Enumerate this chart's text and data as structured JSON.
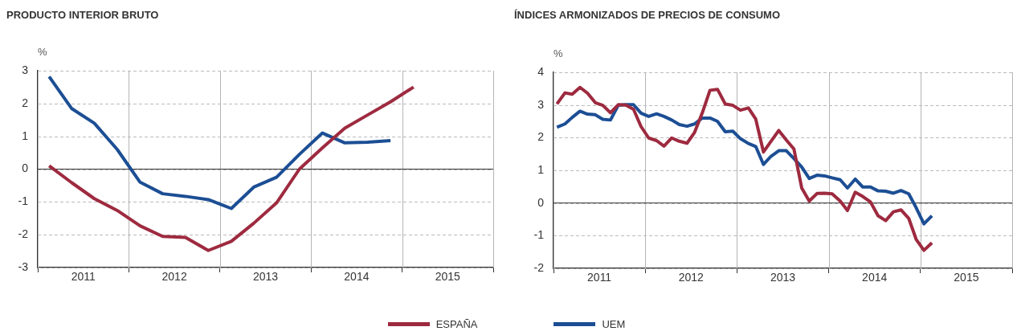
{
  "chart_data": [
    {
      "type": "line",
      "title": "PRODUCTO INTERIOR BRUTO",
      "ylabel": "%",
      "x": [
        "2011-02-15",
        "2011-05-15",
        "2011-08-15",
        "2011-11-15",
        "2012-02-15",
        "2012-05-15",
        "2012-08-15",
        "2012-11-15",
        "2013-02-15",
        "2013-05-15",
        "2013-08-15",
        "2013-11-15",
        "2014-02-15",
        "2014-05-15",
        "2014-08-15",
        "2014-11-15",
        "2015-02-15"
      ],
      "xlim": [
        "2011-01-01",
        "2016-01-01"
      ],
      "xticks": [
        {
          "value": "2011-01-01",
          "label": null
        },
        {
          "value": "2011-07-01",
          "label": "2011"
        },
        {
          "value": "2012-01-01",
          "label": null
        },
        {
          "value": "2012-07-01",
          "label": "2012"
        },
        {
          "value": "2013-01-01",
          "label": null
        },
        {
          "value": "2013-07-01",
          "label": "2013"
        },
        {
          "value": "2014-01-01",
          "label": null
        },
        {
          "value": "2014-07-01",
          "label": "2014"
        },
        {
          "value": "2015-01-01",
          "label": null
        },
        {
          "value": "2015-07-01",
          "label": "2015"
        },
        {
          "value": "2016-01-01",
          "label": null
        }
      ],
      "ylim": [
        -3,
        3
      ],
      "yticks": [
        -3,
        -2,
        -1,
        0,
        1,
        2,
        3
      ],
      "grid": true,
      "legend": "bottom",
      "ref_lines": [
        {
          "axis": "y",
          "value": 0,
          "color": "#333333"
        }
      ],
      "series": [
        {
          "name": "ESPAÑA",
          "color": "#9e2a3f",
          "values": [
            0.1,
            -0.41,
            -0.9,
            -1.26,
            -1.73,
            -2.05,
            -2.08,
            -2.48,
            -2.2,
            -1.65,
            -1.03,
            0.0,
            0.65,
            1.25,
            1.65,
            2.05,
            2.5
          ]
        },
        {
          "name": "UEM",
          "color": "#1c4e94",
          "values": [
            2.82,
            1.85,
            1.4,
            0.6,
            -0.4,
            -0.75,
            -0.83,
            -0.93,
            -1.2,
            -0.55,
            -0.25,
            0.45,
            1.1,
            0.8,
            0.82,
            0.87,
            null
          ]
        }
      ]
    },
    {
      "type": "line",
      "title": "ÍNDICES ARMONIZADOS DE PRECIOS DE CONSUMO",
      "ylabel": "%",
      "x": [
        "2011-01-15",
        "2011-02-15",
        "2011-03-15",
        "2011-04-15",
        "2011-05-15",
        "2011-06-15",
        "2011-07-15",
        "2011-08-15",
        "2011-09-15",
        "2011-10-15",
        "2011-11-15",
        "2011-12-15",
        "2012-01-15",
        "2012-02-15",
        "2012-03-15",
        "2012-04-15",
        "2012-05-15",
        "2012-06-15",
        "2012-07-15",
        "2012-08-15",
        "2012-09-15",
        "2012-10-15",
        "2012-11-15",
        "2012-12-15",
        "2013-01-15",
        "2013-02-15",
        "2013-03-15",
        "2013-04-15",
        "2013-05-15",
        "2013-06-15",
        "2013-07-15",
        "2013-08-15",
        "2013-09-15",
        "2013-10-15",
        "2013-11-15",
        "2013-12-15",
        "2014-01-15",
        "2014-02-15",
        "2014-03-15",
        "2014-04-15",
        "2014-05-15",
        "2014-06-15",
        "2014-07-15",
        "2014-08-15",
        "2014-09-15",
        "2014-10-15",
        "2014-11-15",
        "2014-12-15",
        "2015-01-15",
        "2015-02-15"
      ],
      "xlim": [
        "2011-01-01",
        "2016-01-01"
      ],
      "xticks": [
        {
          "value": "2011-01-01",
          "label": null
        },
        {
          "value": "2011-07-01",
          "label": "2011"
        },
        {
          "value": "2012-01-01",
          "label": null
        },
        {
          "value": "2012-07-01",
          "label": "2012"
        },
        {
          "value": "2013-01-01",
          "label": null
        },
        {
          "value": "2013-07-01",
          "label": "2013"
        },
        {
          "value": "2014-01-01",
          "label": null
        },
        {
          "value": "2014-07-01",
          "label": "2014"
        },
        {
          "value": "2015-01-01",
          "label": null
        },
        {
          "value": "2015-07-01",
          "label": "2015"
        },
        {
          "value": "2016-01-01",
          "label": null
        }
      ],
      "ylim": [
        -2,
        4
      ],
      "yticks": [
        -2,
        -1,
        0,
        1,
        2,
        3,
        4
      ],
      "grid": true,
      "ref_lines": [
        {
          "axis": "y",
          "value": 0,
          "color": "#333333"
        }
      ],
      "series": [
        {
          "color": "#9e2a3f",
          "values": [
            3.03,
            3.37,
            3.33,
            3.54,
            3.36,
            3.07,
            2.99,
            2.76,
            3.01,
            3.0,
            2.87,
            2.34,
            1.99,
            1.91,
            1.74,
            1.99,
            1.89,
            1.83,
            2.16,
            2.75,
            3.45,
            3.48,
            3.03,
            2.99,
            2.84,
            2.91,
            2.57,
            1.56,
            1.89,
            2.22,
            1.93,
            1.65,
            0.46,
            0.06,
            0.29,
            0.3,
            0.28,
            0.06,
            -0.23,
            0.33,
            0.2,
            0.03,
            -0.39,
            -0.54,
            -0.27,
            -0.21,
            -0.47,
            -1.12,
            -1.45,
            -1.22
          ]
        },
        {
          "color": "#1c4e94",
          "values": [
            2.32,
            2.42,
            2.62,
            2.81,
            2.72,
            2.7,
            2.56,
            2.54,
            2.99,
            3.01,
            3.01,
            2.75,
            2.65,
            2.73,
            2.65,
            2.54,
            2.4,
            2.35,
            2.42,
            2.6,
            2.6,
            2.5,
            2.18,
            2.2,
            1.97,
            1.82,
            1.73,
            1.18,
            1.43,
            1.6,
            1.6,
            1.36,
            1.1,
            0.75,
            0.85,
            0.83,
            0.77,
            0.71,
            0.46,
            0.73,
            0.49,
            0.49,
            0.37,
            0.36,
            0.3,
            0.38,
            0.28,
            -0.15,
            -0.64,
            -0.39
          ]
        }
      ]
    }
  ]
}
